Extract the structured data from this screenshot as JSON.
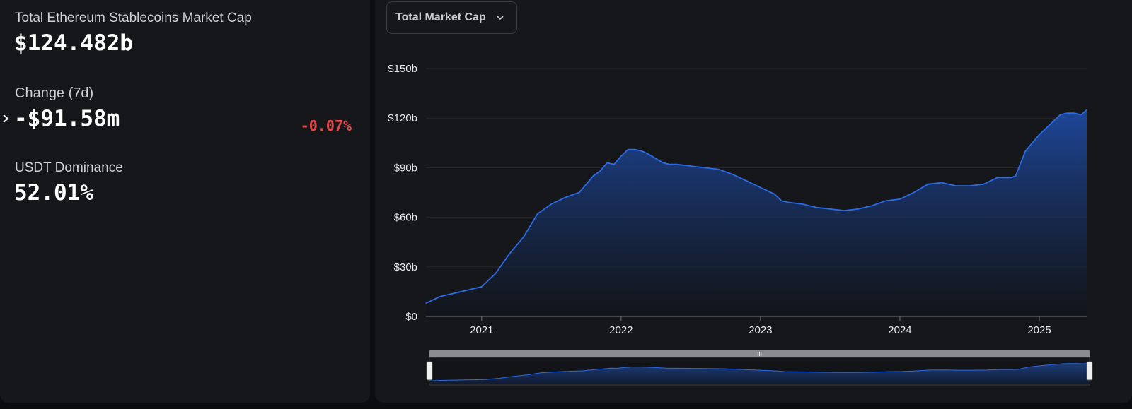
{
  "stats": {
    "market_cap_label": "Total Ethereum Stablecoins Market Cap",
    "market_cap_value": "$124.482b",
    "change_label": "Change (7d)",
    "change_value": "-$91.58m",
    "change_percent": "-0.07%",
    "dominance_label": "USDT Dominance",
    "dominance_value": "52.01%"
  },
  "dropdown": {
    "selected": "Total Market Cap"
  },
  "colors": {
    "line": "#2c6be6",
    "negative": "#e04a4a",
    "background": "#16171a"
  },
  "icons": {
    "expand": "chevron-right-icon",
    "dropdown": "chevron-down-icon",
    "slider_handle": "grip-icon"
  },
  "chart_data": {
    "type": "area",
    "y_ticks": [
      "$0",
      "$30b",
      "$60b",
      "$90b",
      "$120b",
      "$150b"
    ],
    "y_tick_values": [
      0,
      30,
      60,
      90,
      120,
      150
    ],
    "x_ticks": [
      "2021",
      "2022",
      "2023",
      "2024",
      "2025"
    ],
    "x_tick_values": [
      2021,
      2022,
      2023,
      2024,
      2025
    ],
    "xlim": [
      2020.6,
      2025.34
    ],
    "ylim": [
      0,
      150
    ],
    "unit": "billions USD",
    "grid": true,
    "series": [
      {
        "x": [
          2020.6,
          2020.7,
          2020.8,
          2020.9,
          2021.0,
          2021.1,
          2021.2,
          2021.3,
          2021.4,
          2021.5,
          2021.6,
          2021.7,
          2021.8,
          2021.85,
          2021.9,
          2021.95,
          2022.0,
          2022.05,
          2022.1,
          2022.15,
          2022.2,
          2022.3,
          2022.35,
          2022.4,
          2022.5,
          2022.6,
          2022.7,
          2022.8,
          2022.9,
          2023.0,
          2023.1,
          2023.15,
          2023.2,
          2023.3,
          2023.4,
          2023.5,
          2023.6,
          2023.7,
          2023.8,
          2023.9,
          2024.0,
          2024.1,
          2024.2,
          2024.3,
          2024.4,
          2024.5,
          2024.6,
          2024.7,
          2024.8,
          2024.83,
          2024.9,
          2025.0,
          2025.1,
          2025.15,
          2025.2,
          2025.25,
          2025.3,
          2025.34
        ],
        "y": [
          8,
          12,
          14,
          16,
          18,
          26,
          38,
          48,
          62,
          68,
          72,
          75,
          85,
          88,
          93,
          92,
          97,
          101,
          101,
          100,
          98,
          93,
          92,
          92,
          91,
          90,
          89,
          86,
          82,
          78,
          74,
          70,
          69,
          68,
          66,
          65,
          64,
          65,
          67,
          70,
          71,
          75,
          80,
          81,
          79,
          79,
          80,
          84,
          84,
          85,
          100,
          110,
          118,
          122,
          123,
          123,
          122,
          125
        ]
      }
    ]
  },
  "navigator": {
    "handle_label": "III"
  }
}
